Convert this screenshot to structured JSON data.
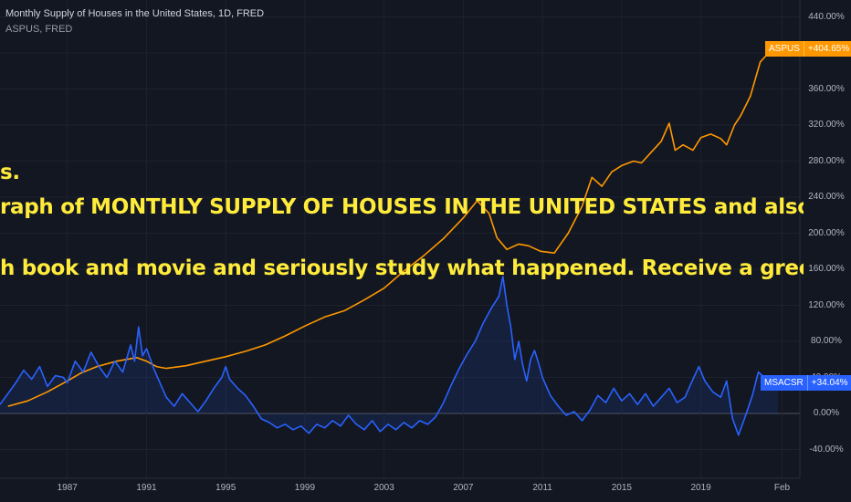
{
  "header": {
    "title": "Monthly Supply of Houses in the United States, 1D, FRED",
    "subtitle": "ASPUS, FRED"
  },
  "overlay": {
    "fragment": "s.",
    "line1": "raph of MONTHLY SUPPLY OF HOUSES IN THE UNITED STATES and also in or",
    "line2": "h book and movie and seriously study what happened. Receive a greeting"
  },
  "colors": {
    "background": "#131722",
    "aspus": "#ff9800",
    "msacsr": "#2962ff",
    "overlay_text": "#ffeb3b",
    "grid": "#1e222d"
  },
  "tags": {
    "aspus": {
      "name": "ASPUS",
      "value": "+404.65%",
      "color": "#ff9800"
    },
    "msacsr": {
      "name": "MSACSR",
      "value": "+34.04%",
      "color": "#2962ff"
    }
  },
  "chart_data": {
    "type": "line",
    "title": "Monthly Supply of Houses in the United States",
    "xlabel": "",
    "ylabel": "",
    "y_ticks": [
      "440.00%",
      "400.00%",
      "360.00%",
      "320.00%",
      "280.00%",
      "240.00%",
      "200.00%",
      "160.00%",
      "120.00%",
      "80.00%",
      "40.00%",
      "0.00%",
      "-40.00%"
    ],
    "x_ticks": [
      "1987",
      "1991",
      "1995",
      "1999",
      "2003",
      "2007",
      "2011",
      "2015",
      "2019",
      "Feb"
    ],
    "ylim": [
      -60,
      450
    ],
    "xlim": [
      1983.6,
      2024.0
    ],
    "series": [
      {
        "name": "ASPUS",
        "line_color": "#ff9800",
        "fill": false,
        "points": [
          [
            1984.0,
            8
          ],
          [
            1985.0,
            14
          ],
          [
            1986.0,
            24
          ],
          [
            1987.0,
            36
          ],
          [
            1987.7,
            45
          ],
          [
            1988.5,
            52
          ],
          [
            1989.5,
            58
          ],
          [
            1990.5,
            62
          ],
          [
            1991.0,
            58
          ],
          [
            1991.5,
            52
          ],
          [
            1992.0,
            50
          ],
          [
            1993.0,
            53
          ],
          [
            1994.0,
            58
          ],
          [
            1995.0,
            63
          ],
          [
            1996.0,
            69
          ],
          [
            1997.0,
            76
          ],
          [
            1998.0,
            86
          ],
          [
            1999.0,
            97
          ],
          [
            2000.0,
            107
          ],
          [
            2001.0,
            114
          ],
          [
            2002.0,
            126
          ],
          [
            2003.0,
            139
          ],
          [
            2004.0,
            158
          ],
          [
            2005.0,
            175
          ],
          [
            2006.0,
            194
          ],
          [
            2007.0,
            217
          ],
          [
            2007.7,
            236
          ],
          [
            2008.3,
            222
          ],
          [
            2008.7,
            195
          ],
          [
            2009.2,
            182
          ],
          [
            2009.8,
            188
          ],
          [
            2010.3,
            186
          ],
          [
            2010.9,
            180
          ],
          [
            2011.6,
            178
          ],
          [
            2012.3,
            200
          ],
          [
            2013.0,
            230
          ],
          [
            2013.5,
            262
          ],
          [
            2014.0,
            252
          ],
          [
            2014.5,
            268
          ],
          [
            2015.0,
            275
          ],
          [
            2015.6,
            280
          ],
          [
            2016.0,
            278
          ],
          [
            2016.5,
            290
          ],
          [
            2017.0,
            302
          ],
          [
            2017.4,
            322
          ],
          [
            2017.7,
            292
          ],
          [
            2018.1,
            298
          ],
          [
            2018.6,
            292
          ],
          [
            2019.0,
            306
          ],
          [
            2019.5,
            310
          ],
          [
            2020.0,
            305
          ],
          [
            2020.3,
            298
          ],
          [
            2020.7,
            320
          ],
          [
            2021.0,
            330
          ],
          [
            2021.5,
            352
          ],
          [
            2022.0,
            390
          ],
          [
            2022.5,
            402
          ],
          [
            2022.8,
            404.65
          ]
        ]
      },
      {
        "name": "MSACSR",
        "line_color": "#2962ff",
        "fill": true,
        "points": [
          [
            1983.6,
            10
          ],
          [
            1984.0,
            22
          ],
          [
            1984.4,
            34
          ],
          [
            1984.8,
            48
          ],
          [
            1985.2,
            38
          ],
          [
            1985.6,
            52
          ],
          [
            1986.0,
            30
          ],
          [
            1986.4,
            42
          ],
          [
            1986.8,
            40
          ],
          [
            1987.0,
            34
          ],
          [
            1987.4,
            58
          ],
          [
            1987.8,
            46
          ],
          [
            1988.2,
            68
          ],
          [
            1988.6,
            52
          ],
          [
            1989.0,
            40
          ],
          [
            1989.4,
            58
          ],
          [
            1989.8,
            46
          ],
          [
            1990.2,
            76
          ],
          [
            1990.4,
            58
          ],
          [
            1990.6,
            96
          ],
          [
            1990.8,
            64
          ],
          [
            1991.0,
            72
          ],
          [
            1991.4,
            48
          ],
          [
            1991.8,
            28
          ],
          [
            1992.0,
            18
          ],
          [
            1992.4,
            8
          ],
          [
            1992.8,
            22
          ],
          [
            1993.2,
            12
          ],
          [
            1993.6,
            2
          ],
          [
            1994.0,
            14
          ],
          [
            1994.4,
            28
          ],
          [
            1994.8,
            40
          ],
          [
            1995.0,
            52
          ],
          [
            1995.2,
            38
          ],
          [
            1995.6,
            28
          ],
          [
            1996.0,
            20
          ],
          [
            1996.4,
            8
          ],
          [
            1996.8,
            -6
          ],
          [
            1997.2,
            -10
          ],
          [
            1997.6,
            -16
          ],
          [
            1998.0,
            -12
          ],
          [
            1998.4,
            -18
          ],
          [
            1998.8,
            -14
          ],
          [
            1999.2,
            -22
          ],
          [
            1999.6,
            -12
          ],
          [
            2000.0,
            -16
          ],
          [
            2000.4,
            -8
          ],
          [
            2000.8,
            -14
          ],
          [
            2001.2,
            -2
          ],
          [
            2001.6,
            -12
          ],
          [
            2002.0,
            -18
          ],
          [
            2002.4,
            -8
          ],
          [
            2002.8,
            -20
          ],
          [
            2003.2,
            -12
          ],
          [
            2003.6,
            -18
          ],
          [
            2004.0,
            -10
          ],
          [
            2004.4,
            -16
          ],
          [
            2004.8,
            -8
          ],
          [
            2005.2,
            -12
          ],
          [
            2005.6,
            -4
          ],
          [
            2006.0,
            12
          ],
          [
            2006.4,
            32
          ],
          [
            2006.8,
            50
          ],
          [
            2007.2,
            66
          ],
          [
            2007.6,
            80
          ],
          [
            2008.0,
            100
          ],
          [
            2008.4,
            116
          ],
          [
            2008.8,
            130
          ],
          [
            2009.0,
            152
          ],
          [
            2009.2,
            120
          ],
          [
            2009.4,
            96
          ],
          [
            2009.6,
            60
          ],
          [
            2009.8,
            80
          ],
          [
            2010.0,
            54
          ],
          [
            2010.2,
            36
          ],
          [
            2010.4,
            60
          ],
          [
            2010.6,
            70
          ],
          [
            2010.8,
            56
          ],
          [
            2011.0,
            40
          ],
          [
            2011.4,
            20
          ],
          [
            2011.8,
            8
          ],
          [
            2012.2,
            -2
          ],
          [
            2012.6,
            2
          ],
          [
            2013.0,
            -8
          ],
          [
            2013.4,
            4
          ],
          [
            2013.8,
            20
          ],
          [
            2014.2,
            12
          ],
          [
            2014.6,
            28
          ],
          [
            2015.0,
            14
          ],
          [
            2015.4,
            22
          ],
          [
            2015.8,
            10
          ],
          [
            2016.2,
            22
          ],
          [
            2016.6,
            8
          ],
          [
            2017.0,
            18
          ],
          [
            2017.4,
            28
          ],
          [
            2017.8,
            12
          ],
          [
            2018.2,
            18
          ],
          [
            2018.6,
            38
          ],
          [
            2018.9,
            52
          ],
          [
            2019.2,
            36
          ],
          [
            2019.6,
            24
          ],
          [
            2020.0,
            18
          ],
          [
            2020.3,
            36
          ],
          [
            2020.6,
            -6
          ],
          [
            2020.9,
            -24
          ],
          [
            2021.2,
            -6
          ],
          [
            2021.6,
            20
          ],
          [
            2021.9,
            46
          ],
          [
            2022.1,
            42
          ],
          [
            2022.3,
            26
          ],
          [
            2022.6,
            38
          ],
          [
            2022.9,
            34.04
          ]
        ]
      }
    ]
  }
}
